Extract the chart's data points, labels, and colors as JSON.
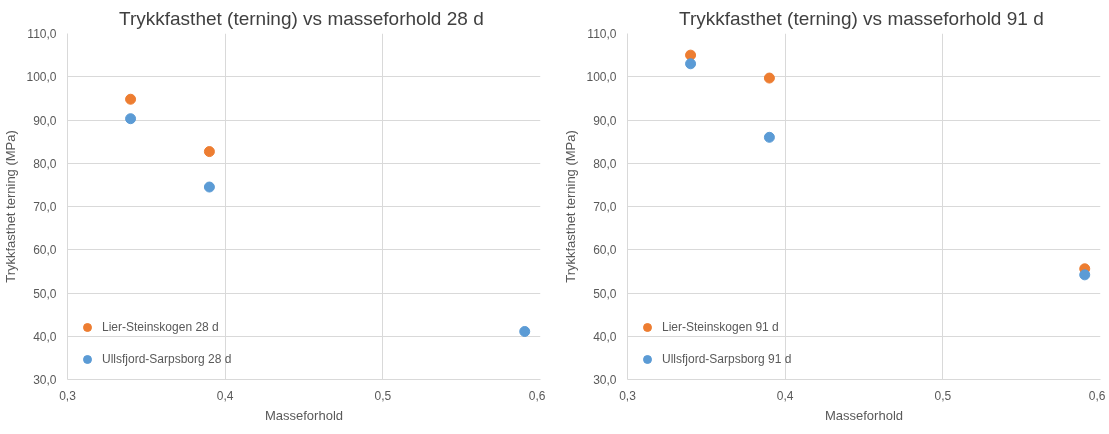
{
  "chart_data": [
    {
      "type": "scatter",
      "title": "Trykkfasthet (terning) vs masseforhold  28 d",
      "xlabel": "Masseforhold",
      "ylabel": "Trykkfasthet terning (MPa)",
      "x": [
        0.34,
        0.39,
        0.59
      ],
      "series": [
        {
          "name": "Lier-Steinskogen 28 d",
          "color": "#ed7d31",
          "values": [
            94.8,
            82.7,
            null
          ]
        },
        {
          "name": "Ullsfjord-Sarpsborg 28 d",
          "color": "#5b9bd5",
          "values": [
            90.3,
            74.5,
            41.1
          ]
        }
      ],
      "xlim": [
        0.3,
        0.6
      ],
      "xticks": [
        {
          "value": 0.3,
          "label": "0,3"
        },
        {
          "value": 0.4,
          "label": "0,4"
        },
        {
          "value": 0.5,
          "label": "0,5"
        },
        {
          "value": 0.6,
          "label": "0,6"
        }
      ],
      "ylim": [
        30,
        110
      ],
      "yticks": [
        {
          "value": 30,
          "label": "30,0"
        },
        {
          "value": 40,
          "label": "40,0"
        },
        {
          "value": 50,
          "label": "50,0"
        },
        {
          "value": 60,
          "label": "60,0"
        },
        {
          "value": 70,
          "label": "70,0"
        },
        {
          "value": 80,
          "label": "80,0"
        },
        {
          "value": 90,
          "label": "90,0"
        },
        {
          "value": 100,
          "label": "100,0"
        },
        {
          "value": 110,
          "label": "110,0"
        }
      ],
      "grid": true,
      "legend": "bottom left",
      "marker": "circle"
    },
    {
      "type": "scatter",
      "title": "Trykkfasthet (terning) vs masseforhold  91 d",
      "xlabel": "Masseforhold",
      "ylabel": "Trykkfasthet terning (MPa)",
      "x": [
        0.34,
        0.39,
        0.59
      ],
      "series": [
        {
          "name": "Lier-Steinskogen 91 d",
          "color": "#ed7d31",
          "values": [
            105.0,
            99.7,
            55.6
          ]
        },
        {
          "name": "Ullsfjord-Sarpsborg 91 d",
          "color": "#5b9bd5",
          "values": [
            103.0,
            86.0,
            54.2
          ]
        }
      ],
      "xlim": [
        0.3,
        0.6
      ],
      "xticks": [
        {
          "value": 0.3,
          "label": "0,3"
        },
        {
          "value": 0.4,
          "label": "0,4"
        },
        {
          "value": 0.5,
          "label": "0,5"
        },
        {
          "value": 0.6,
          "label": "0,6"
        }
      ],
      "ylim": [
        30,
        110
      ],
      "yticks": [
        {
          "value": 30,
          "label": "30,0"
        },
        {
          "value": 40,
          "label": "40,0"
        },
        {
          "value": 50,
          "label": "50,0"
        },
        {
          "value": 60,
          "label": "60,0"
        },
        {
          "value": 70,
          "label": "70,0"
        },
        {
          "value": 80,
          "label": "80,0"
        },
        {
          "value": 90,
          "label": "90,0"
        },
        {
          "value": 100,
          "label": "100,0"
        },
        {
          "value": 110,
          "label": "110,0"
        }
      ],
      "grid": true,
      "legend": "bottom left",
      "marker": "circle"
    }
  ]
}
